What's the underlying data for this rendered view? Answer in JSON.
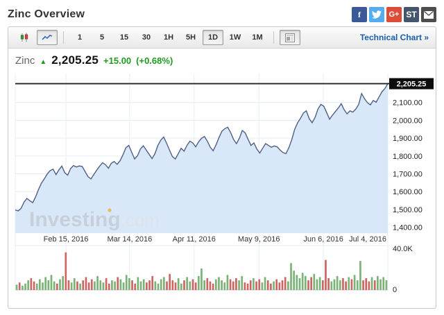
{
  "page": {
    "title": "Zinc Overview"
  },
  "social": [
    {
      "name": "facebook",
      "label": "f",
      "color": "#3b5998",
      "icon": "facebook-icon"
    },
    {
      "name": "twitter",
      "label": "",
      "color": "#55acee",
      "icon": "twitter-bird-icon"
    },
    {
      "name": "googleplus",
      "label": "G+",
      "color": "#dd4b39",
      "icon": "googleplus-icon"
    },
    {
      "name": "stocktwits",
      "label": "ST",
      "color": "#45566c",
      "icon": "stocktwits-icon"
    },
    {
      "name": "email",
      "label": "",
      "color": "#4d4d4d",
      "icon": "envelope-icon"
    }
  ],
  "toolbar": {
    "chart_types": [
      {
        "name": "candlestick",
        "active": false
      },
      {
        "name": "line",
        "active": true
      }
    ],
    "timeframes": [
      "1",
      "5",
      "15",
      "30",
      "1H",
      "5H",
      "1D",
      "1W",
      "1M"
    ],
    "active_timeframe": "1D",
    "news_button": {
      "name": "news-panel"
    },
    "technical_chart_label": "Technical Chart »"
  },
  "quote": {
    "symbol": "Zinc",
    "direction_icon": "▲",
    "price": "2,205.25",
    "change": "+15.00",
    "change_pct": "(+0.68%)",
    "up_color": "#1f9a1f"
  },
  "watermark": {
    "brand": "Investing",
    "suffix": ".com"
  },
  "chart_data": {
    "type": "area",
    "title": "Zinc continuous futures price, 1D",
    "ylim": [
      1375,
      2262
    ],
    "y_ticks": [
      {
        "v": 2100,
        "label": "2,100.00"
      },
      {
        "v": 2000,
        "label": "2,000.00"
      },
      {
        "v": 1900,
        "label": "1,900.00"
      },
      {
        "v": 1800,
        "label": "1,800.00"
      },
      {
        "v": 1700,
        "label": "1,700.00"
      },
      {
        "v": 1600,
        "label": "1,600.00"
      },
      {
        "v": 1500,
        "label": "1,500.00"
      },
      {
        "v": 1400,
        "label": "1,400.00"
      }
    ],
    "x_labels": [
      {
        "label": "Feb 15, 2016",
        "f": 0.136,
        "align": "middle"
      },
      {
        "label": "Mar 14, 2016",
        "f": 0.307,
        "align": "middle"
      },
      {
        "label": "Apr 11, 2016",
        "f": 0.48,
        "align": "middle"
      },
      {
        "label": "May 9, 2016",
        "f": 0.654,
        "align": "middle"
      },
      {
        "label": "Jun 6, 2016",
        "f": 0.827,
        "align": "middle"
      },
      {
        "label": "Jul 4, 2016",
        "f": 1.0,
        "align": "end"
      }
    ],
    "current_price": 2205.25,
    "current_price_label": "2,205.25",
    "prices": [
      1497,
      1492,
      1506,
      1541,
      1562,
      1549,
      1538,
      1571,
      1612,
      1648,
      1672,
      1699,
      1718,
      1726,
      1695,
      1722,
      1743,
      1706,
      1692,
      1729,
      1746,
      1738,
      1744,
      1741,
      1712,
      1684,
      1671,
      1696,
      1721,
      1743,
      1762,
      1751,
      1731,
      1759,
      1769,
      1753,
      1773,
      1806,
      1846,
      1859,
      1821,
      1783,
      1801,
      1839,
      1857,
      1833,
      1809,
      1785,
      1813,
      1859,
      1889,
      1906,
      1871,
      1833,
      1796,
      1783,
      1813,
      1843,
      1827,
      1859,
      1883,
      1873,
      1851,
      1879,
      1899,
      1909,
      1883,
      1849,
      1829,
      1863,
      1903,
      1939,
      1953,
      1961,
      1931,
      1893,
      1869,
      1899,
      1943,
      1929,
      1893,
      1859,
      1873,
      1839,
      1816,
      1843,
      1869,
      1859,
      1849,
      1856,
      1851,
      1833,
      1819,
      1813,
      1846,
      1891,
      1949,
      1986,
      2011,
      2041,
      2053,
      2009,
      1986,
      2016,
      2063,
      2089,
      2079,
      2043,
      2006,
      2029,
      2049,
      2069,
      2093,
      2059,
      2036,
      2053,
      2046,
      2063,
      2089,
      2150,
      2121,
      2099,
      2086,
      2111,
      2101,
      2131,
      2160,
      2178,
      2205.25
    ],
    "volume_axis": {
      "ticks": [
        {
          "v": 40,
          "label": "40.0K"
        },
        {
          "v": 0,
          "label": "0"
        }
      ],
      "max": 40
    },
    "volumes_k": [
      5,
      7,
      4,
      6,
      9,
      11,
      8,
      6,
      10,
      7,
      12,
      9,
      14,
      8,
      6,
      10,
      13,
      35,
      9,
      7,
      11,
      8,
      6,
      9,
      12,
      7,
      10,
      8,
      13,
      9,
      7,
      11,
      6,
      9,
      8,
      12,
      10,
      7,
      14,
      11,
      9,
      6,
      12,
      8,
      10,
      7,
      9,
      13,
      8,
      6,
      10,
      12,
      8,
      15,
      9,
      7,
      11,
      6,
      9,
      12,
      8,
      10,
      7,
      13,
      20,
      9,
      11,
      8,
      6,
      10,
      12,
      9,
      7,
      14,
      10,
      8,
      11,
      9,
      13,
      7,
      6,
      9,
      11,
      8,
      10,
      7,
      12,
      9,
      6,
      8,
      10,
      7,
      9,
      12,
      8,
      25,
      18,
      14,
      11,
      16,
      13,
      9,
      12,
      15,
      10,
      12,
      9,
      28,
      11,
      8,
      10,
      13,
      9,
      11,
      8,
      12,
      10,
      14,
      9,
      27,
      9,
      11,
      8,
      12,
      9,
      13,
      10,
      12,
      9
    ],
    "colors": {
      "line": "#4f5f87",
      "area": "#d9e8f8",
      "grid": "#e7edf3",
      "axis_text": "#222222",
      "current_line": "#222222",
      "badge_bg": "#0c0c0c",
      "badge_text": "#ffffff",
      "vol_up": "#7bb377",
      "vol_down": "#cd6662",
      "baseline": "#cfcfcf"
    },
    "legend": "none",
    "grid": "on"
  }
}
